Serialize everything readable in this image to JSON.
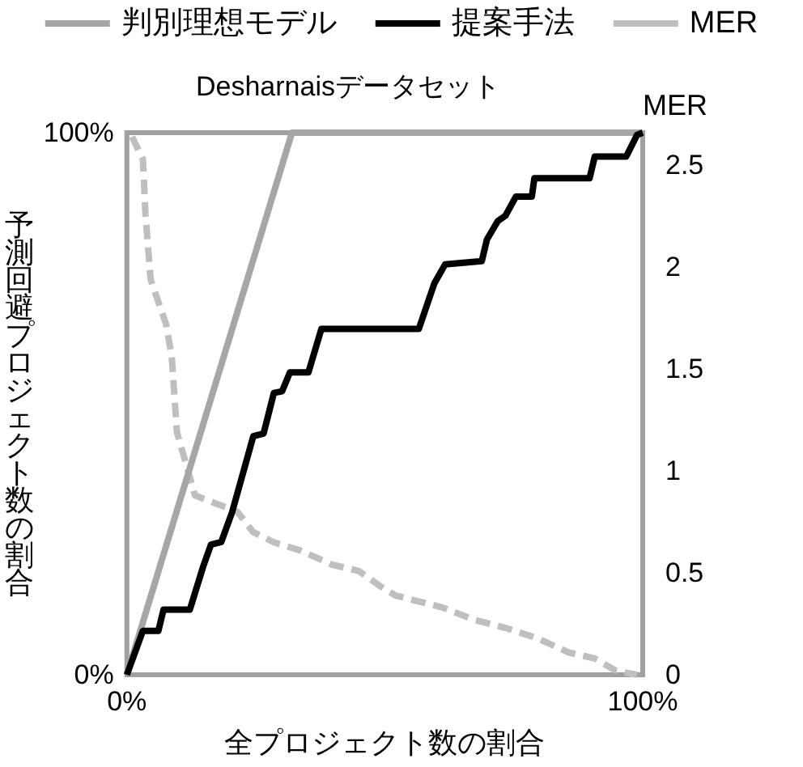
{
  "chart_data": {
    "type": "line",
    "title": "Desharnaisデータセット",
    "xlabel": "全プロジェクト数の割合",
    "ylabel": "予測回避プロジェクト数の割合",
    "y2label": "MER",
    "xlim": [
      0,
      100
    ],
    "xticks": [
      {
        "value": 0,
        "label": "0%"
      },
      {
        "value": 100,
        "label": "100%"
      }
    ],
    "ylim": [
      0,
      100
    ],
    "yticks": [
      {
        "value": 0,
        "label": "0%"
      },
      {
        "value": 100,
        "label": "100%"
      }
    ],
    "y2lim": [
      0,
      2.66
    ],
    "y2ticks": [
      0,
      0.5,
      1,
      1.5,
      2,
      2.5
    ],
    "legend": "top",
    "grid": false,
    "marker": "none",
    "series": [
      {
        "name": "判別理想モデル",
        "color": "#a6a6a6",
        "line_style": "solid",
        "x": [
          0,
          32,
          100
        ],
        "values": [
          0,
          100,
          100
        ]
      },
      {
        "name": "提案手法",
        "color": "#000000",
        "line_style": "solid",
        "x": [
          0,
          3.1,
          6.1,
          7.1,
          12.2,
          14.8,
          16.3,
          18.3,
          20.4,
          24.5,
          26.5,
          28.5,
          30.1,
          31.6,
          35.2,
          37.7,
          56.6,
          59.6,
          61.7,
          68.8,
          69.8,
          71.9,
          73.4,
          75.4,
          78.5,
          79,
          89.7,
          90.7,
          96.8,
          98.9,
          100
        ],
        "values": [
          0,
          8.1,
          8.1,
          12,
          12,
          20,
          24,
          24.5,
          30,
          44,
          44.5,
          52,
          52.3,
          55.8,
          55.8,
          63.8,
          63.8,
          72.2,
          75.7,
          76.3,
          80.3,
          83.7,
          84.7,
          88.2,
          88.2,
          91.6,
          91.6,
          95.6,
          95.6,
          99.6,
          100
        ]
      },
      {
        "name": "MER",
        "color": "#bfbfbf",
        "line_style": "dashed",
        "axis": "y2",
        "x": [
          1,
          3.1,
          3.6,
          4.6,
          7.6,
          8.7,
          9.7,
          12.2,
          13.2,
          17.3,
          21.4,
          24.5,
          28.5,
          33.6,
          39.8,
          44.9,
          49.4,
          52,
          55,
          61.2,
          67.3,
          73.4,
          79.5,
          85.6,
          90.7,
          94.8,
          98.9
        ],
        "values": [
          2.64,
          2.53,
          2.26,
          1.94,
          1.72,
          1.56,
          1.19,
          0.97,
          0.88,
          0.84,
          0.8,
          0.7,
          0.65,
          0.61,
          0.54,
          0.51,
          0.43,
          0.39,
          0.37,
          0.33,
          0.27,
          0.23,
          0.18,
          0.11,
          0.08,
          0.02,
          0
        ]
      }
    ]
  }
}
